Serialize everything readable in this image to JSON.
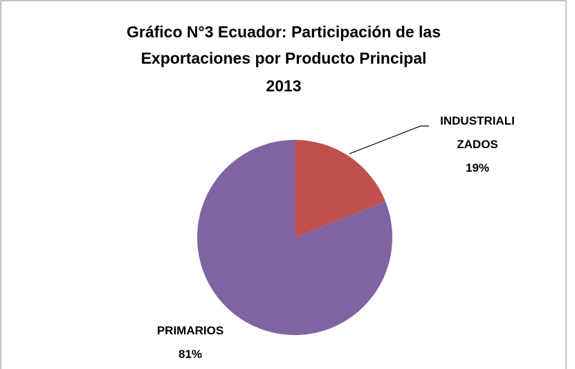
{
  "chart_data": {
    "type": "pie",
    "title": [
      "Gráfico N°3 Ecuador: Participación de las",
      "Exportaciones por Producto Principal",
      "2013"
    ],
    "categories": [
      "INDUSTRIALIZADOS",
      "PRIMARIOS"
    ],
    "values": [
      19,
      81
    ],
    "value_labels": [
      "19%",
      "81%"
    ],
    "colors": [
      "#c0504d",
      "#8064a2"
    ]
  }
}
